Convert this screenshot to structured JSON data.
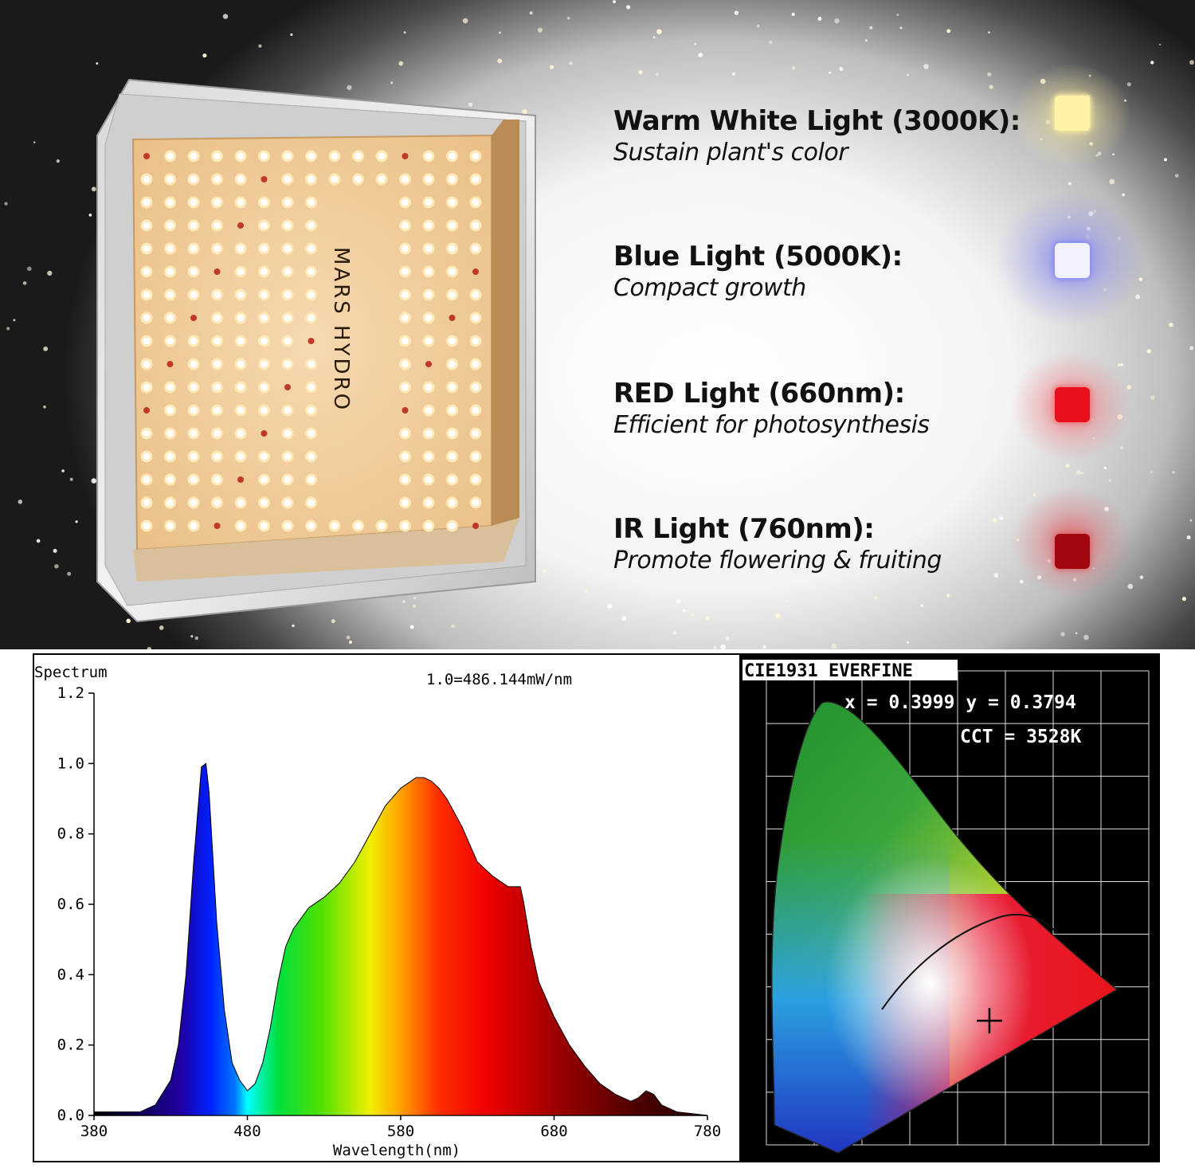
{
  "lamp": {
    "brand_text": "MARS HYDRO"
  },
  "features": [
    {
      "title": "Warm White Light (3000K):",
      "description": "Sustain plant's color",
      "color": "#fff3a8",
      "glow": "#f6e6a0"
    },
    {
      "title": "Blue Light (5000K):",
      "description": "Compact growth",
      "color": "#f2f2ff",
      "glow": "#8a8cf0"
    },
    {
      "title": "RED Light (660nm):",
      "description": "Efficient for photosynthesis",
      "color": "#e8101c",
      "glow": "#f07a80"
    },
    {
      "title": "IR Light (760nm):",
      "description": "Promote flowering & fruiting",
      "color": "#a0080e",
      "glow": "#e06a70"
    }
  ],
  "spectrum_chart": {
    "corner_label": "Spectrum",
    "scale_note": "1.0=486.144mW/nm",
    "xlabel": "Wavelength(nm)",
    "x_ticks": [
      "380",
      "480",
      "580",
      "680",
      "780"
    ],
    "y_ticks": [
      "0.0",
      "0.2",
      "0.4",
      "0.6",
      "0.8",
      "1.0",
      "1.2"
    ]
  },
  "cie_chart": {
    "title": "CIE1931 EVERFINE",
    "coords_text": "x = 0.3999 y = 0.3794",
    "cct_text": "CCT = 3528K"
  },
  "chart_data": [
    {
      "type": "area",
      "title": "",
      "xlabel": "Wavelength(nm)",
      "ylabel": "Spectrum",
      "xlim": [
        380,
        780
      ],
      "ylim": [
        0,
        1.2
      ],
      "grid": false,
      "x": [
        380,
        400,
        410,
        420,
        430,
        435,
        440,
        445,
        450,
        453,
        455,
        460,
        465,
        470,
        475,
        480,
        485,
        490,
        495,
        500,
        505,
        510,
        515,
        520,
        530,
        540,
        550,
        560,
        570,
        580,
        590,
        595,
        600,
        605,
        610,
        620,
        625,
        630,
        640,
        650,
        658,
        660,
        665,
        670,
        680,
        690,
        700,
        710,
        720,
        730,
        735,
        740,
        745,
        750,
        760,
        770,
        780
      ],
      "series": [
        {
          "values": [
            0.01,
            0.01,
            0.01,
            0.03,
            0.1,
            0.2,
            0.4,
            0.72,
            0.99,
            1.0,
            0.92,
            0.55,
            0.3,
            0.15,
            0.1,
            0.07,
            0.09,
            0.15,
            0.25,
            0.38,
            0.48,
            0.53,
            0.56,
            0.59,
            0.62,
            0.66,
            0.72,
            0.8,
            0.88,
            0.93,
            0.96,
            0.96,
            0.95,
            0.93,
            0.9,
            0.82,
            0.77,
            0.72,
            0.68,
            0.65,
            0.65,
            0.61,
            0.48,
            0.38,
            0.28,
            0.2,
            0.14,
            0.09,
            0.06,
            0.04,
            0.05,
            0.07,
            0.06,
            0.03,
            0.01,
            0.005,
            0.0
          ]
        }
      ]
    },
    {
      "type": "scatter",
      "title": "CIE1931 EVERFINE",
      "xlim": [
        0,
        0.8
      ],
      "ylim": [
        0,
        0.9
      ],
      "grid": true,
      "series": [
        {
          "x": [
            0.3999
          ],
          "y": [
            0.3794
          ]
        }
      ],
      "annotations": [
        "x = 0.3999 y = 0.3794",
        "CCT = 3528K"
      ]
    }
  ]
}
